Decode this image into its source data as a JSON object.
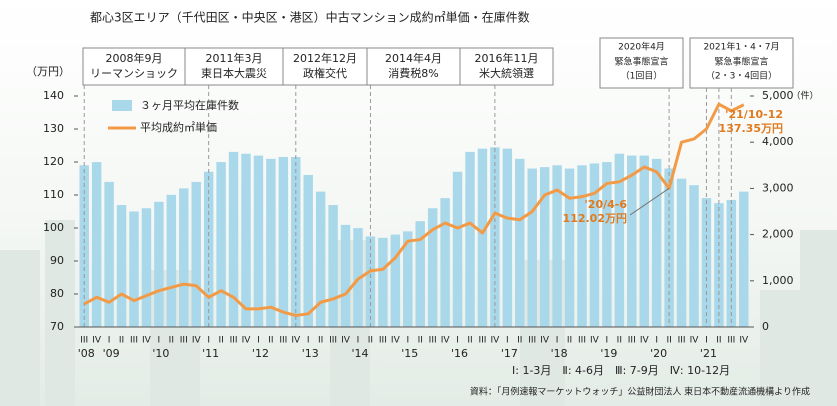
{
  "chart_data": {
    "type": "bar-line",
    "title": "都心3区エリア（千代田区・中央区・港区）中古マンション成約㎡単価・在庫件数",
    "y_unit": "（万円）",
    "y2_unit": "（件）",
    "categories": [
      "III",
      "IV",
      "I",
      "II",
      "III",
      "IV",
      "I",
      "II",
      "III",
      "IV",
      "I",
      "II",
      "III",
      "IV",
      "I",
      "II",
      "III",
      "IV",
      "I",
      "II",
      "III",
      "IV",
      "I",
      "II",
      "III",
      "IV",
      "I",
      "II",
      "III",
      "IV",
      "I",
      "II",
      "III",
      "IV",
      "I",
      "II",
      "III",
      "IV",
      "I",
      "II",
      "III",
      "IV",
      "I",
      "II",
      "III",
      "IV",
      "I",
      "II",
      "III",
      "IV",
      "I",
      "II",
      "III",
      "IV"
    ],
    "year_labels": [
      "'08",
      "'09",
      "'10",
      "'11",
      "'12",
      "'13",
      "'14",
      "'15",
      "'16",
      "'17",
      "'18",
      "'19",
      "'20",
      "'21"
    ],
    "series": [
      {
        "name": "３ヶ月平均在庫件数",
        "color": "#a9d8ea",
        "axis": "y2",
        "values": [
          3500,
          3570,
          3140,
          2640,
          2500,
          2570,
          2710,
          2860,
          3000,
          3140,
          3360,
          3570,
          3790,
          3750,
          3710,
          3640,
          3680,
          3680,
          3290,
          2930,
          2640,
          2210,
          2140,
          1960,
          1930,
          2000,
          2070,
          2290,
          2570,
          2790,
          3360,
          3790,
          3860,
          3890,
          3860,
          3640,
          3430,
          3460,
          3500,
          3430,
          3500,
          3540,
          3570,
          3750,
          3710,
          3710,
          3640,
          3430,
          3210,
          3070,
          2790,
          2680,
          2750,
          2930
        ]
      },
      {
        "name": "平均成約㎡単価",
        "color": "#f39a47",
        "axis": "y",
        "values": [
          77,
          79,
          77.5,
          80,
          78,
          79.5,
          81,
          82,
          83,
          82.5,
          79,
          81,
          79,
          75.5,
          75.5,
          76,
          74.5,
          73.5,
          74,
          77.5,
          78.5,
          80,
          84.5,
          87,
          87.5,
          91,
          96,
          96.5,
          99.5,
          101.5,
          100,
          101.5,
          98.5,
          104.5,
          103,
          102.5,
          105,
          110,
          111.5,
          109,
          109.5,
          110.5,
          113.5,
          114,
          116,
          118.5,
          117,
          112.02,
          126,
          127,
          130,
          137.5,
          135.5,
          137.35
        ]
      }
    ],
    "ylim": [
      70,
      140
    ],
    "yticks": [
      70,
      80,
      90,
      100,
      110,
      120,
      130,
      140
    ],
    "y2lim": [
      0,
      5000
    ],
    "y2ticks": [
      0,
      {
        "value": 1000,
        "label": "1,000"
      },
      {
        "value": 2000,
        "label": "2,000"
      },
      {
        "value": 3000,
        "label": "3,000"
      },
      {
        "value": 4000,
        "label": "4,000"
      },
      {
        "value": 5000,
        "label": "5,000"
      }
    ],
    "events": [
      {
        "date": "2008年9月",
        "label": "リーマンショック"
      },
      {
        "date": "2011年3月",
        "label": "東日本大震災"
      },
      {
        "date": "2012年12月",
        "label": "政権交代"
      },
      {
        "date": "2014年4月",
        "label": "消費税8%"
      },
      {
        "date": "2016年11月",
        "label": "米大統領選"
      },
      {
        "date": "2020年4月",
        "label": "緊急事態宣言",
        "note": "（1回目）"
      },
      {
        "date": "2021年1・4・7月",
        "label": "緊急事態宣言",
        "note": "（2・3・4回目）"
      }
    ],
    "annotations": [
      {
        "period": "'20/4-6",
        "label": "112.02万円"
      },
      {
        "period": "'21/10-12",
        "label": "137.35万円"
      }
    ],
    "quarter_legend": "Ⅰ: 1-3月　Ⅱ: 4-6月　Ⅲ: 7-9月　Ⅳ: 10-12月",
    "source": "資料：「月例速報マーケットウォッチ」公益財団法人 東日本不動産流通機構より作成"
  }
}
